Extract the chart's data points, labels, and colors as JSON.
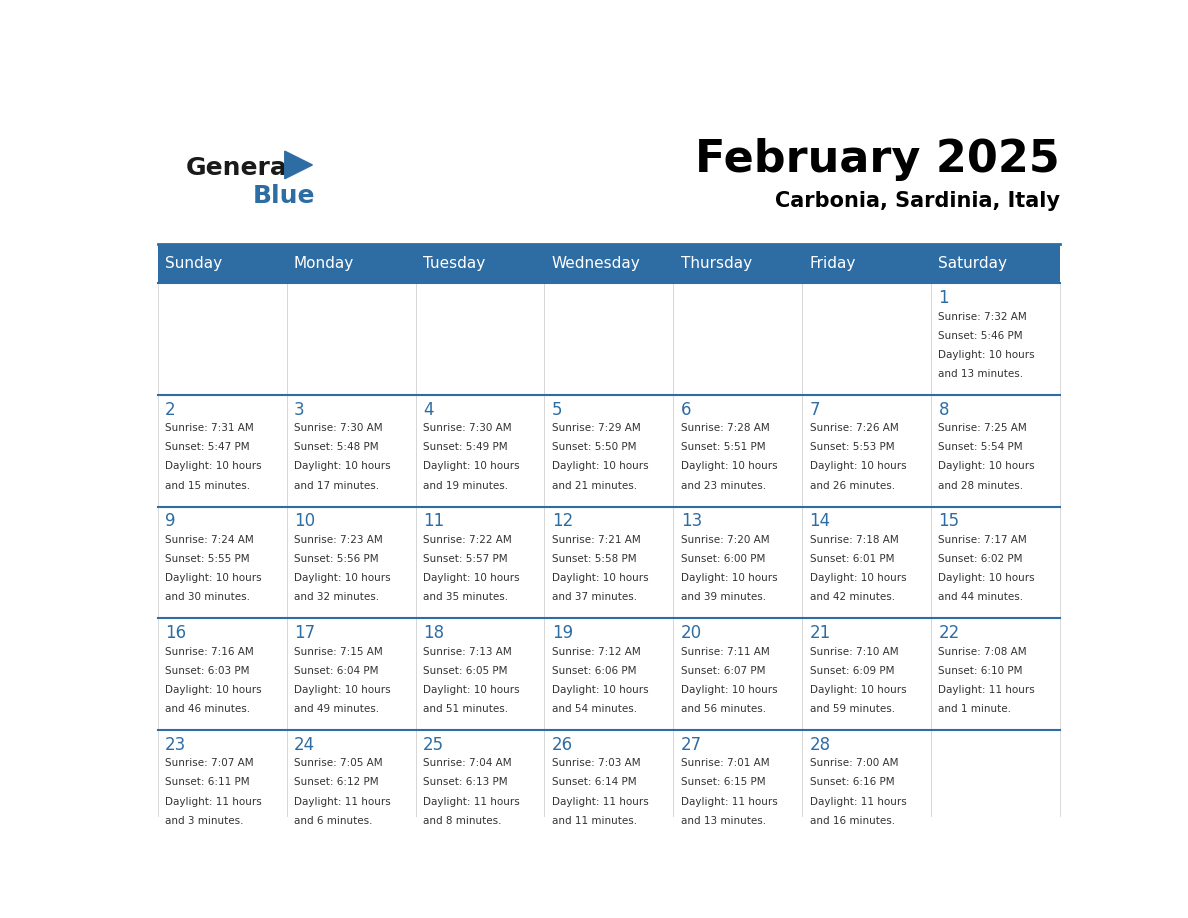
{
  "title": "February 2025",
  "subtitle": "Carbonia, Sardinia, Italy",
  "header_bg": "#2E6DA4",
  "header_text": "#FFFFFF",
  "day_headers": [
    "Sunday",
    "Monday",
    "Tuesday",
    "Wednesday",
    "Thursday",
    "Friday",
    "Saturday"
  ],
  "day_num_color": "#2E6DA4",
  "info_color": "#333333",
  "line_color": "#2E6DA4",
  "logo_general_color": "#1a1a1a",
  "logo_blue_color": "#2E6DA4",
  "weeks": [
    [
      {
        "day": "",
        "info": ""
      },
      {
        "day": "",
        "info": ""
      },
      {
        "day": "",
        "info": ""
      },
      {
        "day": "",
        "info": ""
      },
      {
        "day": "",
        "info": ""
      },
      {
        "day": "",
        "info": ""
      },
      {
        "day": "1",
        "info": "Sunrise: 7:32 AM\nSunset: 5:46 PM\nDaylight: 10 hours\nand 13 minutes."
      }
    ],
    [
      {
        "day": "2",
        "info": "Sunrise: 7:31 AM\nSunset: 5:47 PM\nDaylight: 10 hours\nand 15 minutes."
      },
      {
        "day": "3",
        "info": "Sunrise: 7:30 AM\nSunset: 5:48 PM\nDaylight: 10 hours\nand 17 minutes."
      },
      {
        "day": "4",
        "info": "Sunrise: 7:30 AM\nSunset: 5:49 PM\nDaylight: 10 hours\nand 19 minutes."
      },
      {
        "day": "5",
        "info": "Sunrise: 7:29 AM\nSunset: 5:50 PM\nDaylight: 10 hours\nand 21 minutes."
      },
      {
        "day": "6",
        "info": "Sunrise: 7:28 AM\nSunset: 5:51 PM\nDaylight: 10 hours\nand 23 minutes."
      },
      {
        "day": "7",
        "info": "Sunrise: 7:26 AM\nSunset: 5:53 PM\nDaylight: 10 hours\nand 26 minutes."
      },
      {
        "day": "8",
        "info": "Sunrise: 7:25 AM\nSunset: 5:54 PM\nDaylight: 10 hours\nand 28 minutes."
      }
    ],
    [
      {
        "day": "9",
        "info": "Sunrise: 7:24 AM\nSunset: 5:55 PM\nDaylight: 10 hours\nand 30 minutes."
      },
      {
        "day": "10",
        "info": "Sunrise: 7:23 AM\nSunset: 5:56 PM\nDaylight: 10 hours\nand 32 minutes."
      },
      {
        "day": "11",
        "info": "Sunrise: 7:22 AM\nSunset: 5:57 PM\nDaylight: 10 hours\nand 35 minutes."
      },
      {
        "day": "12",
        "info": "Sunrise: 7:21 AM\nSunset: 5:58 PM\nDaylight: 10 hours\nand 37 minutes."
      },
      {
        "day": "13",
        "info": "Sunrise: 7:20 AM\nSunset: 6:00 PM\nDaylight: 10 hours\nand 39 minutes."
      },
      {
        "day": "14",
        "info": "Sunrise: 7:18 AM\nSunset: 6:01 PM\nDaylight: 10 hours\nand 42 minutes."
      },
      {
        "day": "15",
        "info": "Sunrise: 7:17 AM\nSunset: 6:02 PM\nDaylight: 10 hours\nand 44 minutes."
      }
    ],
    [
      {
        "day": "16",
        "info": "Sunrise: 7:16 AM\nSunset: 6:03 PM\nDaylight: 10 hours\nand 46 minutes."
      },
      {
        "day": "17",
        "info": "Sunrise: 7:15 AM\nSunset: 6:04 PM\nDaylight: 10 hours\nand 49 minutes."
      },
      {
        "day": "18",
        "info": "Sunrise: 7:13 AM\nSunset: 6:05 PM\nDaylight: 10 hours\nand 51 minutes."
      },
      {
        "day": "19",
        "info": "Sunrise: 7:12 AM\nSunset: 6:06 PM\nDaylight: 10 hours\nand 54 minutes."
      },
      {
        "day": "20",
        "info": "Sunrise: 7:11 AM\nSunset: 6:07 PM\nDaylight: 10 hours\nand 56 minutes."
      },
      {
        "day": "21",
        "info": "Sunrise: 7:10 AM\nSunset: 6:09 PM\nDaylight: 10 hours\nand 59 minutes."
      },
      {
        "day": "22",
        "info": "Sunrise: 7:08 AM\nSunset: 6:10 PM\nDaylight: 11 hours\nand 1 minute."
      }
    ],
    [
      {
        "day": "23",
        "info": "Sunrise: 7:07 AM\nSunset: 6:11 PM\nDaylight: 11 hours\nand 3 minutes."
      },
      {
        "day": "24",
        "info": "Sunrise: 7:05 AM\nSunset: 6:12 PM\nDaylight: 11 hours\nand 6 minutes."
      },
      {
        "day": "25",
        "info": "Sunrise: 7:04 AM\nSunset: 6:13 PM\nDaylight: 11 hours\nand 8 minutes."
      },
      {
        "day": "26",
        "info": "Sunrise: 7:03 AM\nSunset: 6:14 PM\nDaylight: 11 hours\nand 11 minutes."
      },
      {
        "day": "27",
        "info": "Sunrise: 7:01 AM\nSunset: 6:15 PM\nDaylight: 11 hours\nand 13 minutes."
      },
      {
        "day": "28",
        "info": "Sunrise: 7:00 AM\nSunset: 6:16 PM\nDaylight: 11 hours\nand 16 minutes."
      },
      {
        "day": "",
        "info": ""
      }
    ]
  ]
}
